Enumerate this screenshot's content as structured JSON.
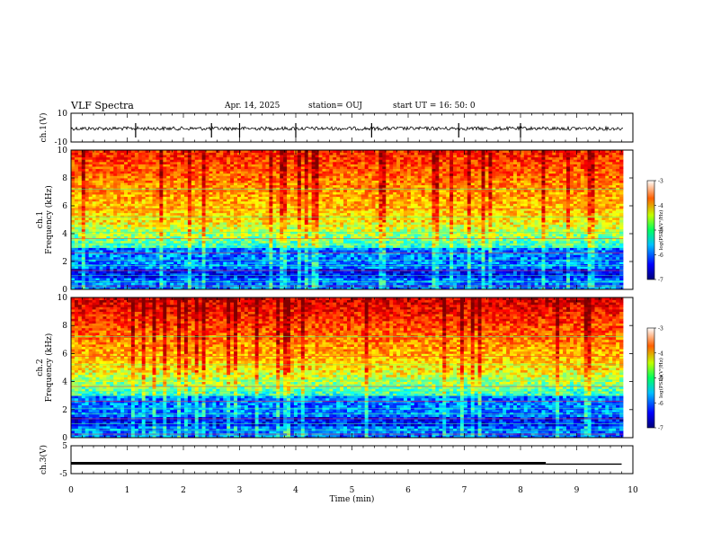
{
  "header": {
    "title": "VLF Spectra",
    "date": "Apr. 14, 2025",
    "station": "station= OUJ",
    "start": "start  UT =   16: 50: 0"
  },
  "chart_data": [
    {
      "type": "line",
      "panel": "ch1-waveform",
      "ylabel": "ch.1(V)",
      "ylim": [
        -10,
        10
      ],
      "yticks": [
        "10",
        "-10"
      ],
      "xlim": [
        0,
        10
      ],
      "series": [
        {
          "values_baseline": 0,
          "spikes_x": [
            1.15,
            2.5,
            3.0,
            4.0,
            5.35,
            6.9,
            8.0
          ]
        }
      ]
    },
    {
      "type": "heatmap",
      "panel": "ch1-spectrogram",
      "ylabel_line1": "ch.1",
      "ylabel_line2": "Frequency (kHz)",
      "ylim": [
        0,
        10
      ],
      "yticks": [
        "0",
        "2",
        "4",
        "6",
        "8",
        "10"
      ],
      "xlim": [
        0,
        9.8
      ],
      "colorbar": {
        "label": "log(PSD)(V²/Hz)",
        "range": [
          -7,
          -3
        ],
        "ticks": [
          "-3",
          "-4",
          "-5",
          "-6",
          "-7"
        ]
      }
    },
    {
      "type": "heatmap",
      "panel": "ch2-spectrogram",
      "ylabel_line1": "ch.2",
      "ylabel_line2": "Frequency (kHz)",
      "ylim": [
        0,
        10
      ],
      "yticks": [
        "0",
        "2",
        "4",
        "6",
        "8",
        "10"
      ],
      "xlim": [
        0,
        9.8
      ],
      "colorbar": {
        "label": "log(PSD)(V²/Hz)",
        "range": [
          -7,
          -3
        ],
        "ticks": [
          "-3",
          "-4",
          "-5",
          "-6",
          "-7"
        ]
      }
    },
    {
      "type": "line",
      "panel": "ch3-waveform",
      "ylabel": "ch.3(V)",
      "ylim": [
        -5,
        5
      ],
      "yticks": [
        "5",
        "-5"
      ],
      "xlim": [
        0,
        10
      ],
      "series": [
        {
          "x": [
            0,
            8.45,
            8.45,
            9.8
          ],
          "values": [
            -1.3,
            -1.3,
            -1.6,
            -1.6
          ]
        }
      ]
    }
  ],
  "xaxis": {
    "label": "Time (min)",
    "ticks": [
      "0",
      "1",
      "2",
      "3",
      "4",
      "5",
      "6",
      "7",
      "8",
      "9",
      "10"
    ]
  }
}
